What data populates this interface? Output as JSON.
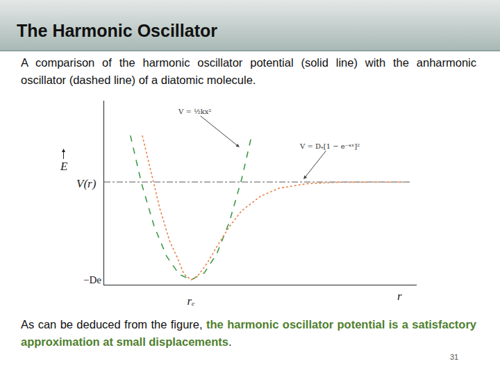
{
  "slide": {
    "title": "The Harmonic Oscillator",
    "intro": "A comparison of the harmonic oscillator potential (solid line) with the anharmonic oscillator (dashed line) of a diatomic molecule.",
    "conclusion_lead": "As can be deduced from the figure, ",
    "conclusion_highlight": "the harmonic oscillator potential is a satisfactory approximation at small displacements",
    "conclusion_end": ".",
    "page": "31"
  },
  "chart_data": {
    "type": "line",
    "series": [
      {
        "color": "#3f9a4a",
        "line_style": "dashed",
        "x": [
          0.84,
          1.2,
          1.6,
          2.0,
          2.4,
          2.78,
          3.2,
          3.6,
          4.0,
          4.4,
          4.72
        ],
        "values": [
          8.27,
          5.59,
          3.24,
          1.57,
          0.58,
          0.27,
          0.65,
          1.7,
          3.44,
          5.86,
          8.27
        ]
      },
      {
        "color": "#e8834a",
        "line_style": "dotted",
        "x": [
          1.22,
          1.5,
          1.78,
          2.1,
          2.33,
          2.55,
          2.78,
          3.0,
          3.3,
          3.6,
          4.0,
          4.4,
          5.0,
          5.6,
          6.5,
          7.5,
          9.78
        ],
        "values": [
          8.27,
          6.2,
          4.23,
          2.4,
          1.54,
          0.6,
          0.27,
          0.5,
          1.2,
          2.1,
          3.2,
          4.1,
          4.9,
          5.35,
          5.6,
          5.68,
          5.69
        ]
      },
      {
        "color": "#a0a0a0",
        "line_style": "dashdot",
        "x": [
          0,
          9.78
        ],
        "values": [
          5.69,
          5.69
        ]
      }
    ],
    "xlim": [
      0,
      10
    ],
    "ylim": [
      0,
      10.2
    ],
    "xticks": [
      {
        "value": 2.78,
        "label": "rₑ"
      }
    ],
    "yticks": [
      {
        "value": 0.27,
        "label": "−De"
      }
    ],
    "xlabel": "r",
    "ylabel": "V(r)",
    "energy_label": "E",
    "grid": false,
    "annotations": [
      {
        "text": "V = ½kx²",
        "x": 4.33,
        "y": 7.62,
        "text_x": 2.89,
        "text_y": 9.62
      },
      {
        "text": "V = Dₑ[1 − e⁻ᵃˣ]²",
        "x": 6.38,
        "y": 5.85,
        "text_x": 7.22,
        "text_y": 7.69
      }
    ]
  }
}
